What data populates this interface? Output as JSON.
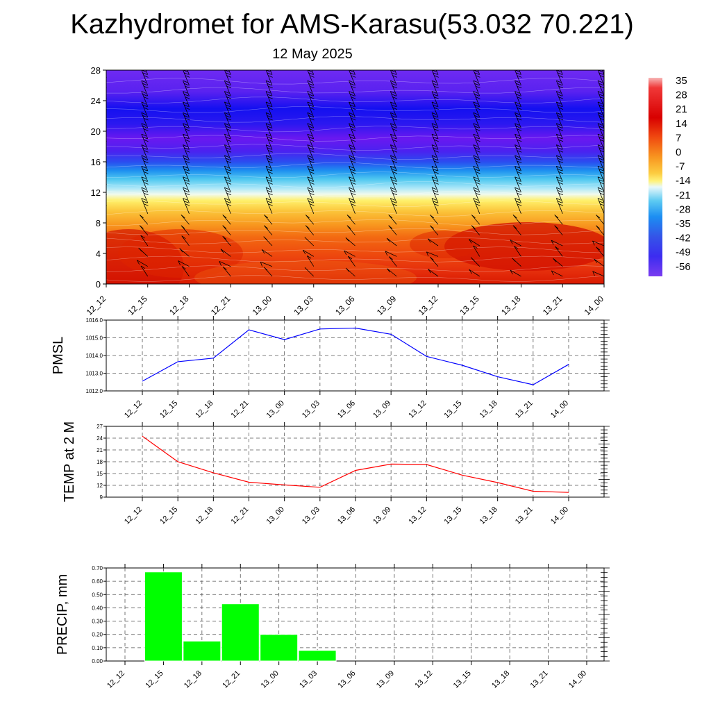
{
  "header": {
    "title": "Kazhydromet for AMS-Karasu(53.032 70.221)",
    "date": "12 May 2025"
  },
  "time_labels": [
    "12_12",
    "12_15",
    "12_18",
    "12_21",
    "13_00",
    "13_03",
    "13_06",
    "13_09",
    "13_12",
    "13_15",
    "13_18",
    "13_21",
    "14_00"
  ],
  "colors": {
    "pmsl_line": "#0000ff",
    "temp_line": "#ff0000",
    "precip_bar": "#00ff00",
    "grid": "#555555"
  },
  "chart_data": [
    {
      "type": "heatmap",
      "title": "Kazhydromet for AMS-Karasu(53.032 70.221)",
      "subtitle": "12 May 2025",
      "x": [
        "12_12",
        "12_15",
        "12_18",
        "12_21",
        "13_00",
        "13_03",
        "13_06",
        "13_09",
        "13_12",
        "13_15",
        "13_18",
        "13_21",
        "14_00"
      ],
      "y_ticks": [
        0,
        4,
        8,
        12,
        16,
        20,
        24,
        28
      ],
      "ylim": [
        0,
        28
      ],
      "colorbar_labels": [
        "35",
        "28",
        "21",
        "14",
        "7",
        "0",
        "-7",
        "-14",
        "-21",
        "-28",
        "-35",
        "-42",
        "-49",
        "-56"
      ],
      "colorbar_range": [
        -60,
        38
      ],
      "grid": false,
      "legend": "right",
      "wind_barbs": true
    },
    {
      "type": "line",
      "ylabel": "PMSL",
      "x": [
        "12_12",
        "12_15",
        "12_18",
        "12_21",
        "13_00",
        "13_03",
        "13_06",
        "13_09",
        "13_12",
        "13_15",
        "13_18",
        "13_21",
        "14_00"
      ],
      "series": [
        {
          "values": [
            1012.55,
            1013.65,
            1013.85,
            1015.45,
            1014.9,
            1015.5,
            1015.55,
            1015.2,
            1013.95,
            1013.45,
            1012.8,
            1012.35,
            1013.5
          ]
        }
      ],
      "ylim": [
        1012.0,
        1016.0
      ],
      "y_ticks": [
        "1012.0",
        "1013.0",
        "1014.0",
        "1015.0",
        "1016.0"
      ],
      "grid": true
    },
    {
      "type": "line",
      "ylabel": "TEMP at 2 M",
      "x": [
        "12_12",
        "12_15",
        "12_18",
        "12_21",
        "13_00",
        "13_03",
        "13_06",
        "13_09",
        "13_12",
        "13_15",
        "13_18",
        "13_21",
        "14_00"
      ],
      "series": [
        {
          "values": [
            24.5,
            18.0,
            15.2,
            12.8,
            12.1,
            11.5,
            15.8,
            17.4,
            17.3,
            14.6,
            12.7,
            10.5,
            10.2
          ]
        }
      ],
      "ylim": [
        9,
        27
      ],
      "y_ticks": [
        "9",
        "12",
        "15",
        "18",
        "21",
        "24",
        "27"
      ],
      "grid": true
    },
    {
      "type": "bar",
      "ylabel": "PRECIP, mm",
      "categories": [
        "12_12",
        "12_15",
        "12_18",
        "12_21",
        "13_00",
        "13_03",
        "13_06",
        "13_09",
        "13_12",
        "13_15",
        "13_18",
        "13_21",
        "14_00"
      ],
      "values": [
        0.0,
        0.67,
        0.15,
        0.43,
        0.2,
        0.08,
        0.0,
        0.0,
        0.0,
        0.0,
        0.0,
        0.0,
        0.0
      ],
      "ylim": [
        0,
        0.7
      ],
      "y_ticks": [
        "0.00",
        "0.10",
        "0.20",
        "0.30",
        "0.40",
        "0.50",
        "0.60",
        "0.70"
      ],
      "grid": true
    }
  ]
}
